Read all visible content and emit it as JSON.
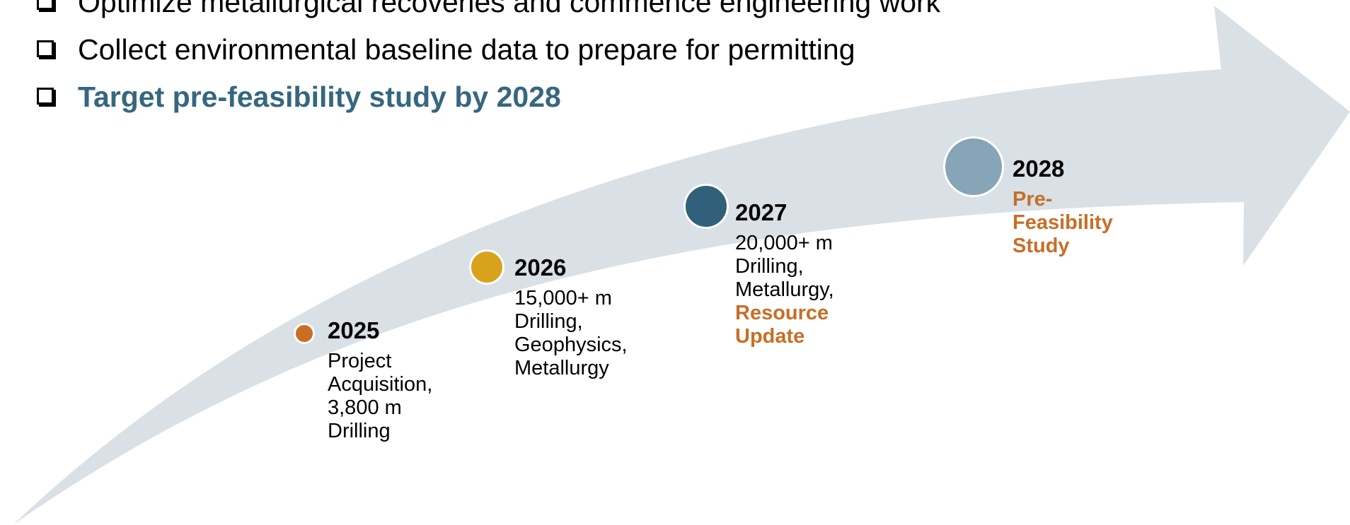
{
  "bullets": [
    {
      "text": "Optimize metallurgical recoveries and commence engineering work",
      "highlight": false
    },
    {
      "text": "Collect environmental baseline data to prepare for permitting",
      "highlight": false
    },
    {
      "text": "Target pre-feasibility study by 2028",
      "highlight": true
    }
  ],
  "colors": {
    "arrow": "#d9e0e6",
    "accent": "#c86e25",
    "highlight_text": "#35677f",
    "dot_2025": "#c86e25",
    "dot_2026": "#d9a21c",
    "dot_2027": "#31617a",
    "dot_2028": "#86a5b6"
  },
  "milestones": [
    {
      "year": "2025",
      "lines": [
        "Project",
        "Acquisition,",
        "3,800 m",
        "Drilling"
      ],
      "accent_lines": []
    },
    {
      "year": "2026",
      "lines": [
        "15,000+ m",
        "Drilling,",
        "Geophysics,",
        "Metallurgy"
      ],
      "accent_lines": []
    },
    {
      "year": "2027",
      "lines": [
        "20,000+ m",
        "Drilling,",
        "Metallurgy,"
      ],
      "accent_lines": [
        "Resource",
        "Update"
      ]
    },
    {
      "year": "2028",
      "lines": [],
      "accent_lines": [
        "Pre-",
        "Feasibility",
        "Study"
      ]
    }
  ]
}
